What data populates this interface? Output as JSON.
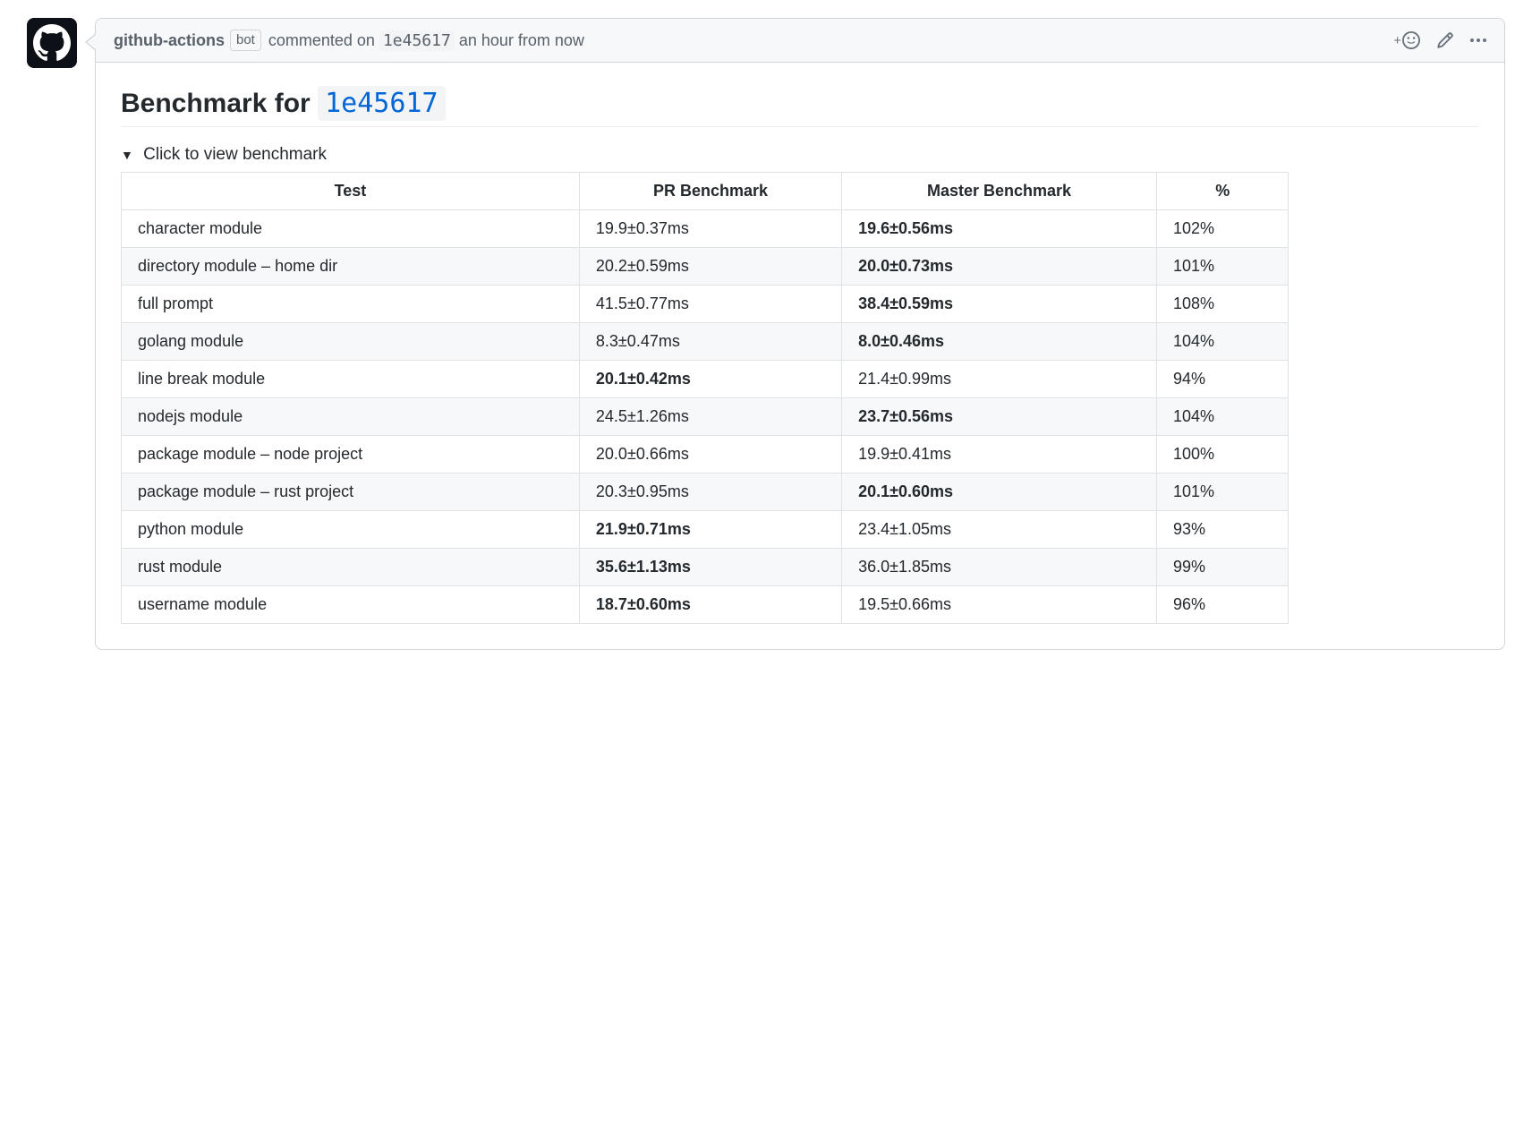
{
  "header": {
    "author": "github-actions",
    "bot_label": "bot",
    "commented_text": "commented on",
    "commit_hash": "1e45617",
    "timestamp": "an hour from now"
  },
  "title": {
    "prefix": "Benchmark for",
    "hash": "1e45617"
  },
  "details": {
    "summary": "Click to view benchmark"
  },
  "table": {
    "columns": [
      "Test",
      "PR Benchmark",
      "Master Benchmark",
      "%"
    ],
    "rows": [
      {
        "test": "character module",
        "pr": "19.9±0.37ms",
        "master": "19.6±0.56ms",
        "pct": "102%",
        "pr_bold": false,
        "master_bold": true
      },
      {
        "test": "directory module – home dir",
        "pr": "20.2±0.59ms",
        "master": "20.0±0.73ms",
        "pct": "101%",
        "pr_bold": false,
        "master_bold": true
      },
      {
        "test": "full prompt",
        "pr": "41.5±0.77ms",
        "master": "38.4±0.59ms",
        "pct": "108%",
        "pr_bold": false,
        "master_bold": true
      },
      {
        "test": "golang module",
        "pr": "8.3±0.47ms",
        "master": "8.0±0.46ms",
        "pct": "104%",
        "pr_bold": false,
        "master_bold": true
      },
      {
        "test": "line break module",
        "pr": "20.1±0.42ms",
        "master": "21.4±0.99ms",
        "pct": "94%",
        "pr_bold": true,
        "master_bold": false
      },
      {
        "test": "nodejs module",
        "pr": "24.5±1.26ms",
        "master": "23.7±0.56ms",
        "pct": "104%",
        "pr_bold": false,
        "master_bold": true
      },
      {
        "test": "package module – node project",
        "pr": "20.0±0.66ms",
        "master": "19.9±0.41ms",
        "pct": "100%",
        "pr_bold": false,
        "master_bold": false
      },
      {
        "test": "package module – rust project",
        "pr": "20.3±0.95ms",
        "master": "20.1±0.60ms",
        "pct": "101%",
        "pr_bold": false,
        "master_bold": true
      },
      {
        "test": "python module",
        "pr": "21.9±0.71ms",
        "master": "23.4±1.05ms",
        "pct": "93%",
        "pr_bold": true,
        "master_bold": false
      },
      {
        "test": "rust module",
        "pr": "35.6±1.13ms",
        "master": "36.0±1.85ms",
        "pct": "99%",
        "pr_bold": true,
        "master_bold": false
      },
      {
        "test": "username module",
        "pr": "18.7±0.60ms",
        "master": "19.5±0.66ms",
        "pct": "96%",
        "pr_bold": true,
        "master_bold": false
      }
    ]
  },
  "colors": {
    "border": "#d1d5da",
    "header_bg": "#f6f8fa",
    "link": "#0366d6",
    "text": "#24292e",
    "muted": "#586069",
    "table_border": "#dfe2e5",
    "stripe": "#f6f8fa"
  }
}
